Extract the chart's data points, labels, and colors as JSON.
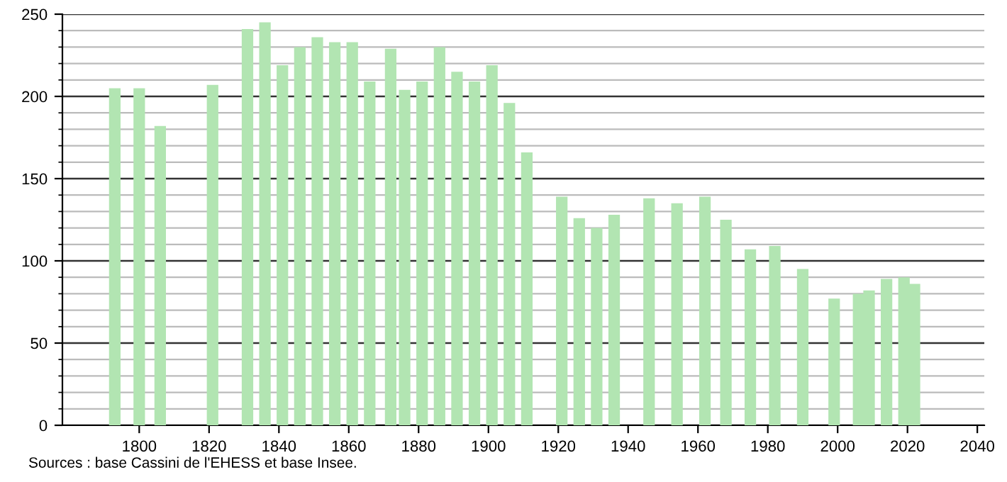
{
  "chart_data": {
    "type": "bar",
    "x": [
      1793,
      1800,
      1806,
      1821,
      1831,
      1836,
      1841,
      1846,
      1851,
      1856,
      1861,
      1866,
      1872,
      1876,
      1881,
      1886,
      1891,
      1896,
      1901,
      1906,
      1911,
      1921,
      1926,
      1931,
      1936,
      1946,
      1954,
      1962,
      1968,
      1975,
      1982,
      1990,
      1999,
      2006,
      2009,
      2014,
      2019,
      2022
    ],
    "values": [
      205,
      205,
      182,
      207,
      241,
      245,
      219,
      230,
      236,
      233,
      233,
      209,
      229,
      204,
      209,
      230,
      215,
      209,
      219,
      196,
      166,
      139,
      126,
      120,
      128,
      138,
      135,
      139,
      125,
      107,
      109,
      95,
      77,
      80,
      82,
      89,
      90,
      86
    ],
    "color": "#b2e5b2",
    "xlim": [
      1778,
      2042
    ],
    "xticks": [
      1800,
      1820,
      1840,
      1860,
      1880,
      1900,
      1920,
      1940,
      1960,
      1980,
      2000,
      2020,
      2040
    ],
    "ylim": [
      0,
      250
    ],
    "yticks": [
      0,
      50,
      100,
      150,
      200,
      250
    ],
    "grid": "y",
    "annotations": [
      "Sources : base Cassini de l'EHESS et base Insee."
    ]
  }
}
